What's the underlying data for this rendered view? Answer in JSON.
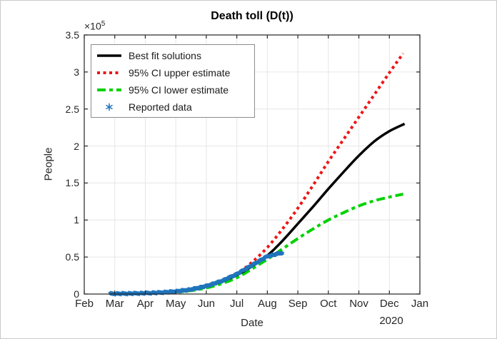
{
  "figure": {
    "title": "Death toll (D(t))",
    "xlabel": "Date",
    "ylabel": "People",
    "y_multiplier_base": "×10",
    "y_multiplier_exp": "5",
    "year_label": "2020"
  },
  "chart_data": {
    "type": "line",
    "title": "Death toll (D(t))",
    "xlabel": "Date",
    "ylabel": "People",
    "y_unit_multiplier": "1e5",
    "x_tick_labels": [
      "Feb",
      "Mar",
      "Apr",
      "May",
      "Jun",
      "Jul",
      "Aug",
      "Sep",
      "Oct",
      "Nov",
      "Dec",
      "Jan"
    ],
    "x_secondary_label": "2020",
    "y_tick_labels": [
      "0",
      "0.5",
      "1",
      "1.5",
      "2",
      "2.5",
      "3",
      "3.5"
    ],
    "y_ticks": [
      0,
      0.5,
      1,
      1.5,
      2,
      2.5,
      3,
      3.5
    ],
    "ylim": [
      0,
      3.5
    ],
    "xlim_month_index": [
      0,
      11
    ],
    "grid": true,
    "legend_position": "upper-left",
    "axis_color": "#262626",
    "grid_color": "#e6e6e6",
    "series": [
      {
        "name": "Best fit solutions",
        "color": "#000000",
        "style": "solid",
        "line_width": 3.5,
        "points_month_value": [
          [
            0.85,
            0.002
          ],
          [
            1.5,
            0.005
          ],
          [
            2,
            0.009
          ],
          [
            2.5,
            0.016
          ],
          [
            3,
            0.03
          ],
          [
            3.5,
            0.055
          ],
          [
            4,
            0.1
          ],
          [
            4.5,
            0.165
          ],
          [
            5,
            0.255
          ],
          [
            5.5,
            0.375
          ],
          [
            6,
            0.52
          ],
          [
            6.5,
            0.72
          ],
          [
            7,
            0.95
          ],
          [
            7.5,
            1.18
          ],
          [
            8,
            1.42
          ],
          [
            8.5,
            1.65
          ],
          [
            9,
            1.87
          ],
          [
            9.5,
            2.06
          ],
          [
            10,
            2.2
          ],
          [
            10.5,
            2.3
          ]
        ]
      },
      {
        "name": "95% CI upper estimate",
        "color": "#f01414",
        "style": "dotted",
        "line_width": 4,
        "points_month_value": [
          [
            0.85,
            0.002
          ],
          [
            1.5,
            0.005
          ],
          [
            2,
            0.009
          ],
          [
            2.5,
            0.017
          ],
          [
            3,
            0.032
          ],
          [
            3.5,
            0.06
          ],
          [
            4,
            0.105
          ],
          [
            4.5,
            0.18
          ],
          [
            5,
            0.275
          ],
          [
            5.5,
            0.43
          ],
          [
            6,
            0.63
          ],
          [
            6.5,
            0.88
          ],
          [
            7,
            1.16
          ],
          [
            7.5,
            1.47
          ],
          [
            8,
            1.79
          ],
          [
            8.5,
            2.09
          ],
          [
            9,
            2.39
          ],
          [
            9.5,
            2.69
          ],
          [
            10,
            2.99
          ],
          [
            10.45,
            3.25
          ]
        ]
      },
      {
        "name": "95% CI lower estimate",
        "color": "#00d200",
        "style": "dashdot",
        "line_width": 4,
        "points_month_value": [
          [
            0.85,
            0.002
          ],
          [
            1.5,
            0.004
          ],
          [
            2,
            0.007
          ],
          [
            2.5,
            0.013
          ],
          [
            3,
            0.024
          ],
          [
            3.5,
            0.046
          ],
          [
            4,
            0.082
          ],
          [
            4.5,
            0.14
          ],
          [
            5,
            0.22
          ],
          [
            5.5,
            0.34
          ],
          [
            6,
            0.47
          ],
          [
            6.5,
            0.61
          ],
          [
            7,
            0.75
          ],
          [
            7.5,
            0.88
          ],
          [
            8,
            1.0
          ],
          [
            8.5,
            1.1
          ],
          [
            9,
            1.19
          ],
          [
            9.5,
            1.26
          ],
          [
            10,
            1.31
          ],
          [
            10.45,
            1.35
          ]
        ]
      },
      {
        "name": "Reported data",
        "color": "#1f74bc",
        "style": "asterisk-markers",
        "marker": "*",
        "marker_step_month": 0.03,
        "points_month_value": [
          [
            0.85,
            0.004
          ],
          [
            1.5,
            0.007
          ],
          [
            2,
            0.012
          ],
          [
            2.5,
            0.02
          ],
          [
            3,
            0.036
          ],
          [
            3.5,
            0.062
          ],
          [
            4,
            0.108
          ],
          [
            4.5,
            0.175
          ],
          [
            5,
            0.27
          ],
          [
            5.5,
            0.39
          ],
          [
            6,
            0.51
          ],
          [
            6.3,
            0.54
          ],
          [
            6.5,
            0.56
          ]
        ]
      }
    ]
  }
}
